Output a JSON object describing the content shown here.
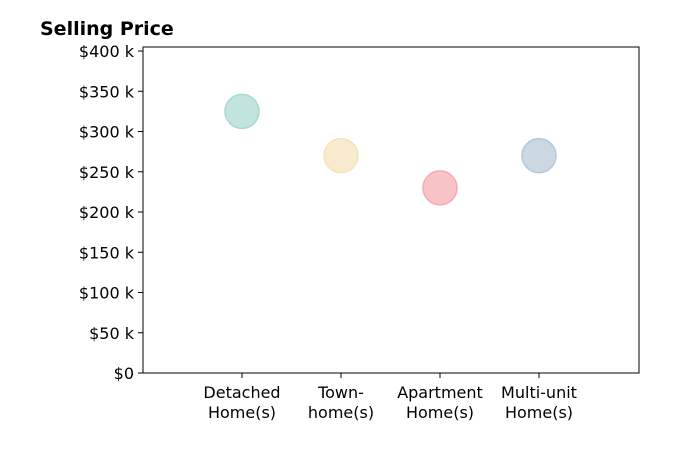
{
  "chart_data": {
    "type": "scatter",
    "title": "Selling Price",
    "xlabel": "",
    "ylabel": "",
    "categories": [
      "Detached\nHome(s)",
      "Town-\nhome(s)",
      "Apartment\nHome(s)",
      "Multi-unit\nHome(s)"
    ],
    "values": [
      325000,
      270000,
      230000,
      270000
    ],
    "ylim": [
      0,
      405000
    ],
    "yticks": [
      0,
      50000,
      100000,
      150000,
      200000,
      250000,
      300000,
      350000,
      400000
    ],
    "ytick_labels": [
      "$0",
      "$50 k",
      "$100 k",
      "$150 k",
      "$200 k",
      "$250 k",
      "$300 k",
      "$350 k",
      "$400 k"
    ],
    "colors": [
      "#a8d8d0",
      "#f5e3b8",
      "#f5aaae",
      "#b3c8d9"
    ],
    "grid": false,
    "legend": "none"
  }
}
